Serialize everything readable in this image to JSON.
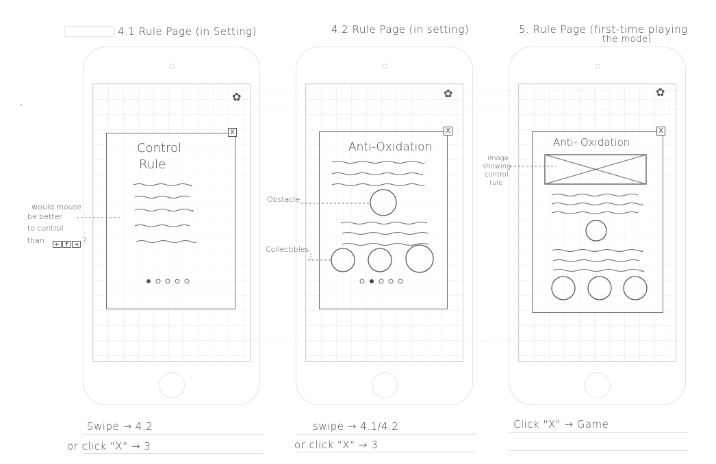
{
  "titles": {
    "page1": "4.1 Rule Page (in Setting)",
    "page2": "4.2 Rule Page (in setting)",
    "page3_line1": "5. Rule Page (first-time playing",
    "page3_line2": "the mode)"
  },
  "screens": {
    "s1": {
      "card_title_line1": "Control",
      "card_title_line2": "Rule",
      "close_glyph": "X",
      "gear_glyph": "✿"
    },
    "s2": {
      "card_title": "Anti-Oxidation",
      "close_glyph": "X",
      "gear_glyph": "✿"
    },
    "s3": {
      "card_title": "Anti- Oxidation",
      "close_glyph": "X",
      "gear_glyph": "✿"
    }
  },
  "annotations": {
    "mouse_note_lines": [
      "would mouse",
      "be better",
      "to control",
      "than"
    ],
    "mouse_note_suffix": "?",
    "obstacle": "Obstacle",
    "collectibles": "Collectibles",
    "image_note_lines": [
      "image",
      "showing",
      "control",
      "rule"
    ]
  },
  "navigation": {
    "n1_line1": "Swipe → 4.2",
    "n1_line2": "or click \"X\" → 3",
    "n2_line1": "swipe → 4.1/4.2",
    "n2_line2": "or click \"X\" → 3",
    "n3_line1": "Click \"X\" → Game"
  },
  "colors": {
    "pencil": "#444444",
    "grid": "#f2f2f2",
    "phone_outline": "#e2e2e2"
  }
}
